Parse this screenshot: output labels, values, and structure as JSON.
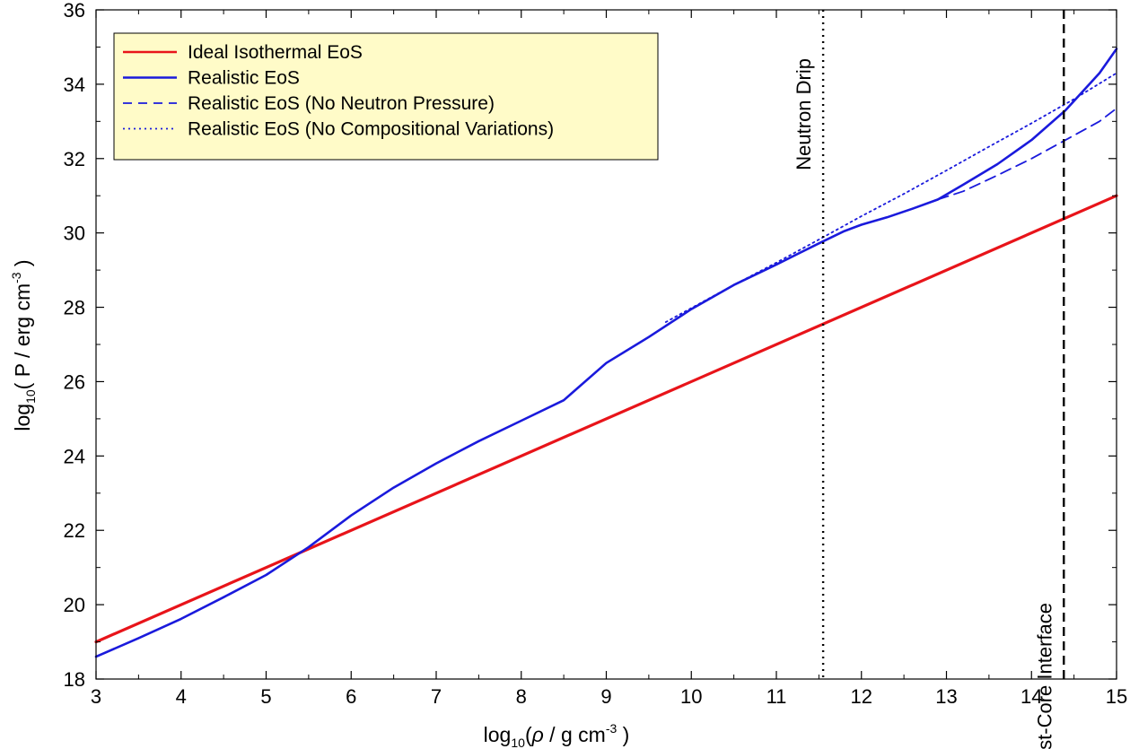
{
  "chart_data": {
    "type": "line",
    "title": "",
    "xlabel": {
      "prefix": "log",
      "sub": "10",
      "open": "(",
      "var": "ρ",
      "unit": " / g cm",
      "sup": "-3",
      "close": " )"
    },
    "ylabel": {
      "prefix": "log",
      "sub": "10",
      "open": "( P / erg cm",
      "sup": "-3",
      "close": " )"
    },
    "xlim": [
      3,
      15
    ],
    "ylim": [
      18,
      36
    ],
    "xticks": [
      "3",
      "4",
      "5",
      "6",
      "7",
      "8",
      "9",
      "10",
      "11",
      "12",
      "13",
      "14",
      "15"
    ],
    "yticks": [
      "18",
      "20",
      "22",
      "24",
      "26",
      "28",
      "30",
      "32",
      "34",
      "36"
    ],
    "grid": false,
    "legend_position": "top-left",
    "series": [
      {
        "name": "Ideal Isothermal EoS",
        "color": "#e8141a",
        "style": "solid",
        "x": [
          3,
          15
        ],
        "y": [
          19.0,
          31.0
        ]
      },
      {
        "name": "Realistic EoS",
        "color": "#1a1adc",
        "style": "solid",
        "x": [
          3,
          3.5,
          4,
          4.5,
          5,
          5.5,
          6,
          6.5,
          7,
          7.5,
          8,
          8.5,
          9,
          9.5,
          10,
          10.5,
          11,
          11.5,
          11.8,
          12,
          12.3,
          12.6,
          12.9,
          13.2,
          13.6,
          14,
          14.4,
          14.8,
          15
        ],
        "y": [
          18.6,
          19.1,
          19.62,
          20.2,
          20.8,
          21.55,
          22.4,
          23.15,
          23.8,
          24.4,
          24.95,
          25.5,
          26.5,
          27.2,
          27.95,
          28.6,
          29.15,
          29.72,
          30.05,
          30.22,
          30.42,
          30.65,
          30.9,
          31.3,
          31.85,
          32.5,
          33.3,
          34.3,
          34.95
        ]
      },
      {
        "name": "Realistic EoS (No Neutron Pressure)",
        "color": "#1a1adc",
        "style": "dashed",
        "x": [
          12.9,
          13.2,
          13.6,
          14,
          14.4,
          14.8,
          15
        ],
        "y": [
          30.9,
          31.12,
          31.55,
          32.0,
          32.5,
          33.0,
          33.35
        ]
      },
      {
        "name": "Realistic EoS (No Compositional Variations)",
        "color": "#1a1adc",
        "style": "dotted",
        "x": [
          9.7,
          10,
          10.5,
          11,
          11.5,
          12,
          12.5,
          13,
          13.5,
          14,
          14.5,
          15
        ],
        "y": [
          27.6,
          27.98,
          28.6,
          29.2,
          29.82,
          30.45,
          31.05,
          31.68,
          32.32,
          32.95,
          33.6,
          34.3
        ]
      }
    ],
    "vlines": [
      {
        "label": "Neutron Drip",
        "x": 11.55,
        "style": "dotted",
        "color": "#000000"
      },
      {
        "label": "Crust-Core Interface",
        "x": 14.38,
        "style": "dashed",
        "color": "#000000"
      }
    ],
    "legend": [
      {
        "label": "Ideal Isothermal EoS",
        "color": "#e8141a",
        "style": "solid"
      },
      {
        "label": "Realistic EoS",
        "color": "#1a1adc",
        "style": "solid"
      },
      {
        "label": "Realistic EoS (No Neutron Pressure)",
        "color": "#1a1adc",
        "style": "dashed"
      },
      {
        "label": "Realistic EoS (No Compositional Variations)",
        "color": "#1a1adc",
        "style": "dotted"
      }
    ],
    "legend_bg": "#fffbc8"
  }
}
